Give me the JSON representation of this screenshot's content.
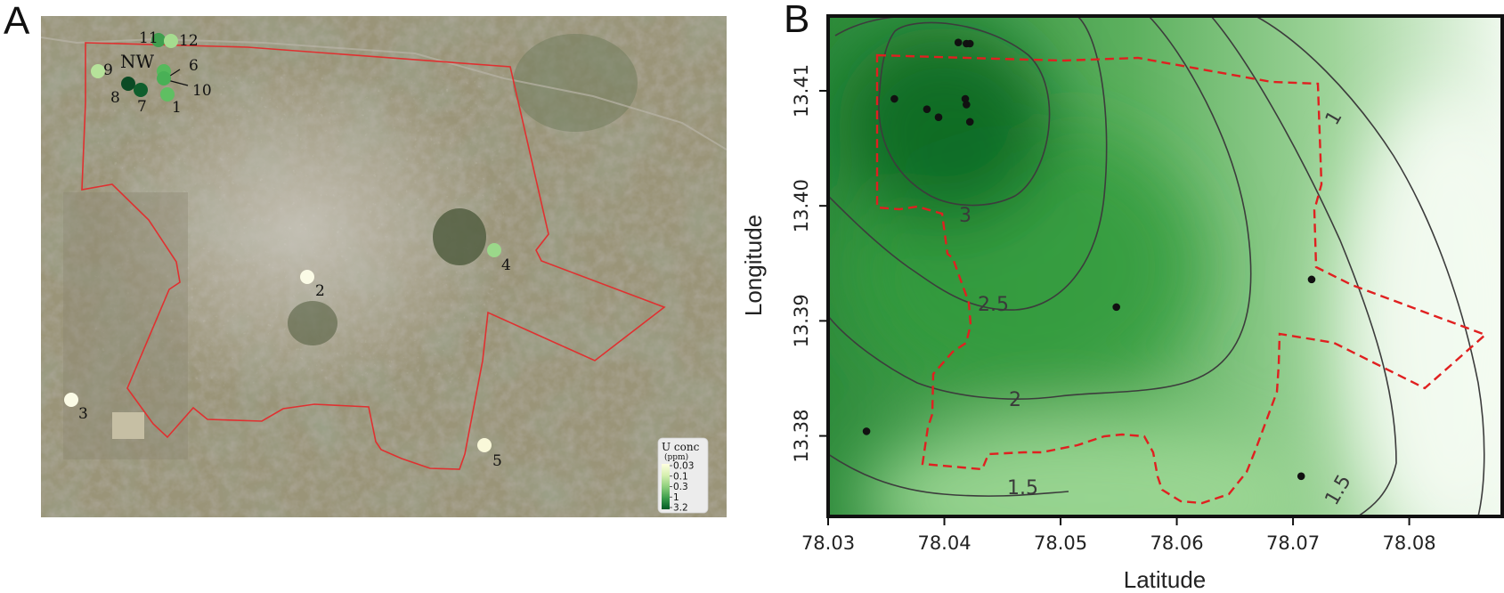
{
  "panelA": {
    "letter": "A",
    "nw_label": "NW",
    "sites": [
      {
        "id": "1",
        "label": "1",
        "color": "#5fbf62"
      },
      {
        "id": "2",
        "label": "2",
        "color": "#fbfbe6"
      },
      {
        "id": "3",
        "label": "3",
        "color": "#fbfbe6"
      },
      {
        "id": "4",
        "label": "4",
        "color": "#9bd88a"
      },
      {
        "id": "5",
        "label": "5",
        "color": "#f9f8d9"
      },
      {
        "id": "6",
        "label": "6",
        "color": "#56b95c"
      },
      {
        "id": "7",
        "label": "7",
        "color": "#0f5e2c"
      },
      {
        "id": "8",
        "label": "8",
        "color": "#0b4a24"
      },
      {
        "id": "9",
        "label": "9",
        "color": "#b6e29a"
      },
      {
        "id": "10",
        "label": "10",
        "color": "#49b056"
      },
      {
        "id": "11",
        "label": "11",
        "color": "#3f9e4e"
      },
      {
        "id": "12",
        "label": "12",
        "color": "#a5dc8f"
      }
    ],
    "legend": {
      "title": "U conc",
      "unit": "(ppm)",
      "ticks": [
        "0.03",
        "0.1",
        "0.3",
        "1",
        "3.2"
      ],
      "colors": [
        "#ffffe0",
        "#d6efb0",
        "#8fcf7d",
        "#3c9e4c",
        "#005a24"
      ]
    },
    "boundary_color": "#e03030"
  },
  "panelB": {
    "letter": "B",
    "xlabel": "Latitude",
    "ylabel": "Longitude",
    "x_ticks": [
      "78.03",
      "78.04",
      "78.05",
      "78.06",
      "78.07",
      "78.08"
    ],
    "y_ticks": [
      "13.38",
      "13.39",
      "13.40",
      "13.41"
    ],
    "contour_labels": [
      "3",
      "2.5",
      "2",
      "1.5",
      "1.5",
      "1"
    ],
    "boundary_color": "#e02020"
  },
  "chart_data": {
    "type": "scatter",
    "title": "",
    "xlabel": "Latitude",
    "ylabel": "Longitude",
    "xlim": [
      78.03,
      78.088
    ],
    "ylim": [
      13.373,
      13.4165
    ],
    "contour_levels": [
      1,
      1.5,
      1.5,
      2,
      2.5,
      3
    ],
    "series": [
      {
        "x": [
          78.0357,
          78.0385,
          78.0395,
          78.0412,
          78.0418,
          78.0419,
          78.0422,
          78.0419,
          78.0422,
          78.0548,
          78.0716,
          78.0333,
          78.0707
        ],
        "y": [
          13.4093,
          13.4084,
          13.4077,
          13.4142,
          13.4093,
          13.4088,
          13.4073,
          13.4141,
          13.4141,
          13.3912,
          13.3936,
          13.3804,
          13.3765
        ]
      }
    ]
  }
}
